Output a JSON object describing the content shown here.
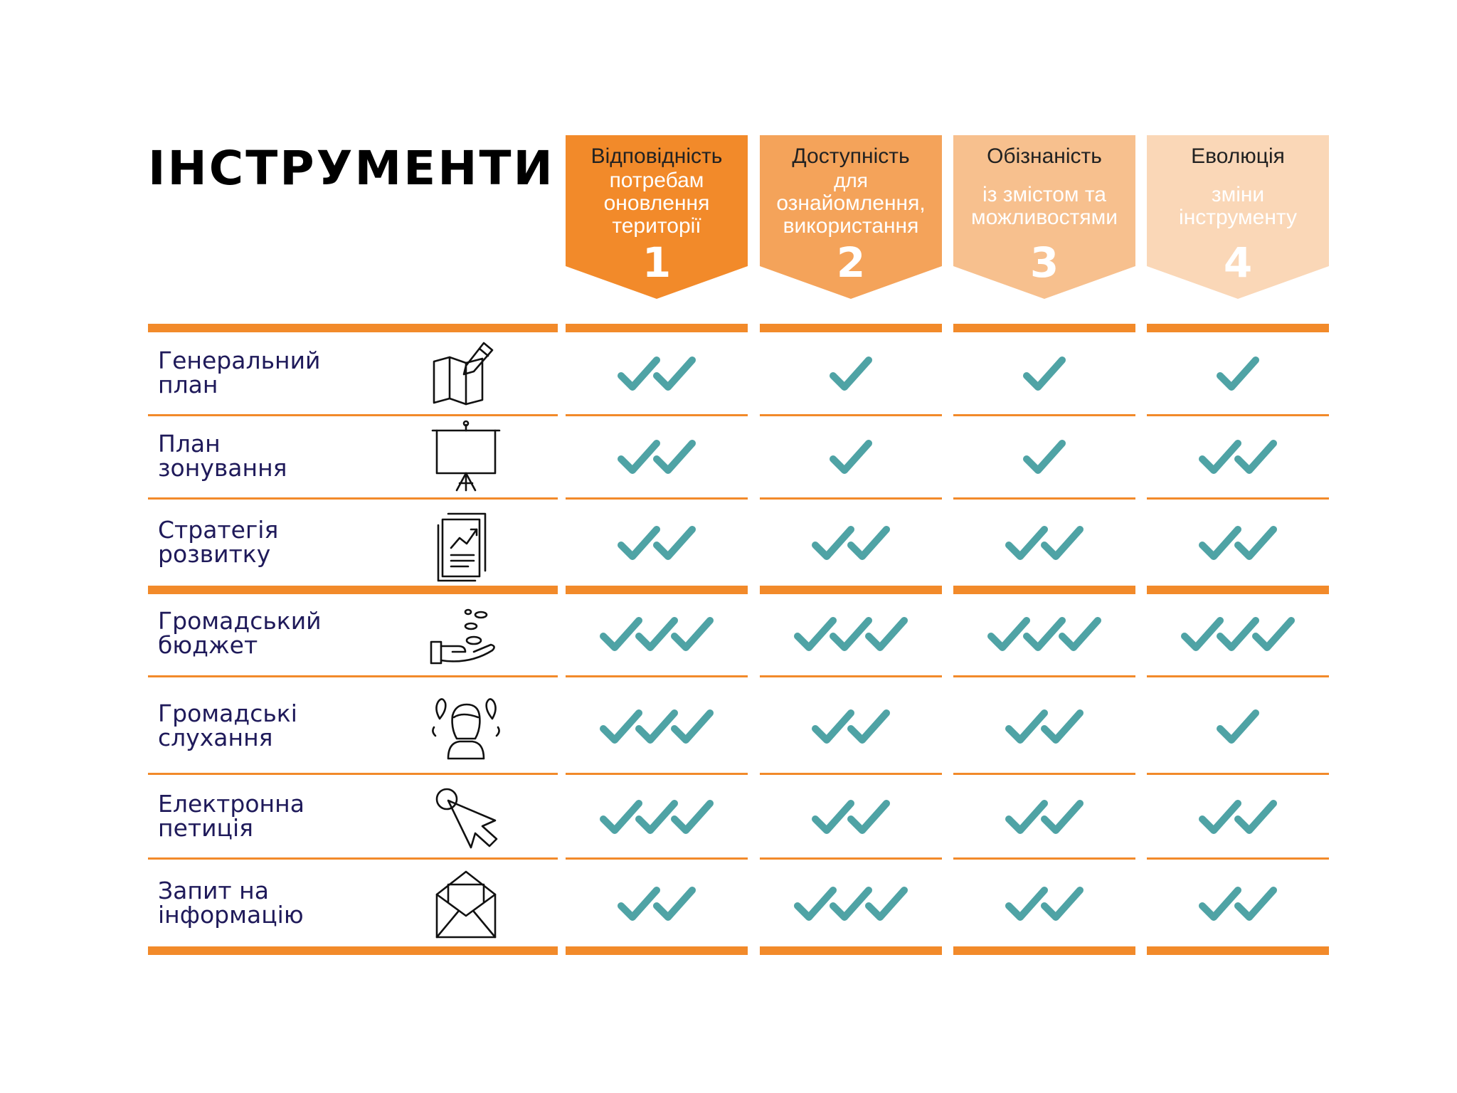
{
  "title": "ІНСТРУМЕНТИ",
  "columns": [
    {
      "title": "Відповідність",
      "sub": [
        "потребам",
        "оновлення",
        "території"
      ],
      "number": "1",
      "color": "#f28a2a",
      "text_color": "#222222",
      "sub_color": "#ffffff",
      "num_color": "#ffffff"
    },
    {
      "title": "Доступність",
      "sub": [
        "для",
        "ознайомлення,",
        "використання"
      ],
      "number": "2",
      "color": "#f4a35a",
      "text_color": "#222222",
      "sub_color": "#ffffff",
      "num_color": "#ffffff"
    },
    {
      "title": "Обізнаність",
      "sub": [
        "із змістом та",
        "можливостями"
      ],
      "number": "3",
      "color": "#f7c08e",
      "text_color": "#222222",
      "sub_color": "#ffffff",
      "num_color": "#ffffff"
    },
    {
      "title": "Еволюція",
      "sub": [
        "зміни",
        "інструменту"
      ],
      "number": "4",
      "color": "#fad7b7",
      "text_color": "#222222",
      "sub_color": "#ffffff",
      "num_color": "#ffffff"
    }
  ],
  "rows": [
    {
      "label": [
        "Генеральний",
        "план"
      ],
      "icon": "map-pencil-icon",
      "checks": [
        2,
        1,
        1,
        1
      ]
    },
    {
      "label": [
        "План",
        "зонування"
      ],
      "icon": "presentation-board-icon",
      "checks": [
        2,
        1,
        1,
        2
      ]
    },
    {
      "label": [
        "Стратегія",
        "розвитку"
      ],
      "icon": "strategy-report-icon",
      "checks": [
        2,
        2,
        2,
        2
      ]
    },
    {
      "label": [
        "Громадський",
        "бюджет"
      ],
      "icon": "hand-coins-icon",
      "checks": [
        3,
        3,
        3,
        3
      ]
    },
    {
      "label": [
        "Громадські",
        "слухання"
      ],
      "icon": "person-hearing-icon",
      "checks": [
        3,
        2,
        2,
        1
      ]
    },
    {
      "label": [
        "Електронна",
        "петиція"
      ],
      "icon": "cursor-click-icon",
      "checks": [
        3,
        2,
        2,
        2
      ]
    },
    {
      "label": [
        "Запит на",
        "інформацію"
      ],
      "icon": "envelope-icon",
      "checks": [
        2,
        3,
        2,
        2
      ]
    }
  ],
  "colors": {
    "accent": "#f28a2a",
    "check": "#4fa3a5",
    "label": "#1f1a5a"
  }
}
